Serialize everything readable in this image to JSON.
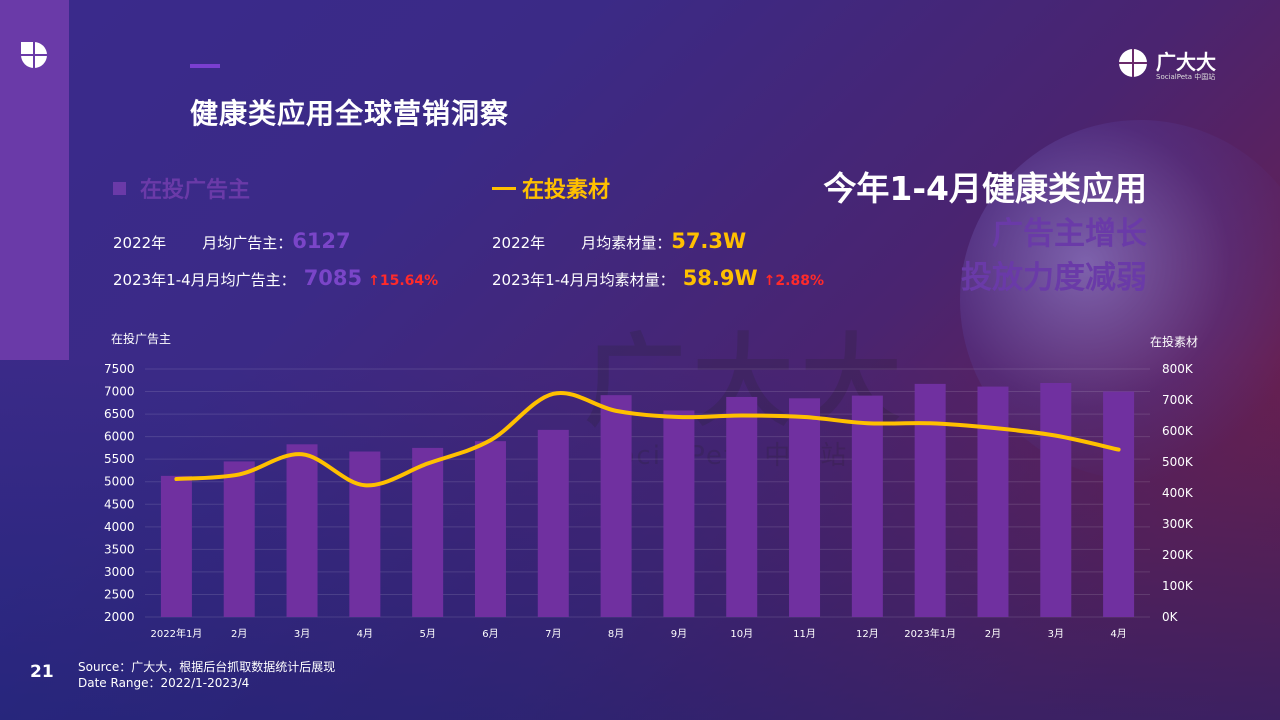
{
  "page": {
    "number": "21",
    "title": "健康类应用全球营销洞察"
  },
  "brand": {
    "name": "广大大",
    "sub": "SocialPeta 中国站"
  },
  "watermark": {
    "text": "广大大",
    "sub": "SocialPeta 中国站"
  },
  "advertisers": {
    "heading": "在投广告主",
    "row1_label": "2022年",
    "row1_sublabel": "月均广告主：",
    "row1_value": "6127",
    "row2_label": "2023年1-4月月均广告主：",
    "row2_value": "7085",
    "row2_change": "↑15.64%"
  },
  "creatives": {
    "heading": "在投素材",
    "row1_label": "2022年",
    "row1_sublabel": "月均素材量：",
    "row1_value": "57.3W",
    "row2_label": "2023年1-4月月均素材量：",
    "row2_value": "58.9W",
    "row2_change": "↑2.88%"
  },
  "headline": {
    "line1": "今年1-4月健康类应用",
    "line2": "广告主增长",
    "line3": "投放力度减弱"
  },
  "source": {
    "line1": "Source：广大大，根据后台抓取数据统计后展现",
    "line2": "Date Range：2022/1-2023/4"
  },
  "colors": {
    "bar": "#7030a0",
    "line": "#ffc000",
    "accent_purple": "#6a3aa8",
    "up_red": "#ff2a2a"
  },
  "chart_data": {
    "type": "bar+line",
    "categories": [
      "2022年1月",
      "2月",
      "3月",
      "4月",
      "5月",
      "6月",
      "7月",
      "8月",
      "9月",
      "10月",
      "11月",
      "12月",
      "2023年1月",
      "2月",
      "3月",
      "4月"
    ],
    "y_left_title": "在投广告主",
    "y_right_title": "在投素材",
    "y_left_ticks": [
      "2000",
      "2500",
      "3000",
      "3500",
      "4000",
      "4500",
      "5000",
      "5500",
      "6000",
      "6500",
      "7000",
      "7500"
    ],
    "y_right_ticks": [
      "0K",
      "100K",
      "200K",
      "300K",
      "400K",
      "500K",
      "600K",
      "700K",
      "800K"
    ],
    "ylim_left": [
      2000,
      7500
    ],
    "ylim_right": [
      0,
      800000
    ],
    "series": [
      {
        "name": "在投广告主",
        "kind": "bar",
        "axis": "left",
        "values": [
          5130,
          5450,
          5830,
          5670,
          5750,
          5900,
          6150,
          6920,
          6580,
          6880,
          6850,
          6910,
          7170,
          7110,
          7190,
          7000
        ]
      },
      {
        "name": "在投素材",
        "kind": "line",
        "axis": "right",
        "values": [
          445000,
          460000,
          525000,
          425000,
          495000,
          570000,
          720000,
          665000,
          645000,
          650000,
          645000,
          625000,
          625000,
          610000,
          585000,
          540000
        ]
      }
    ]
  }
}
